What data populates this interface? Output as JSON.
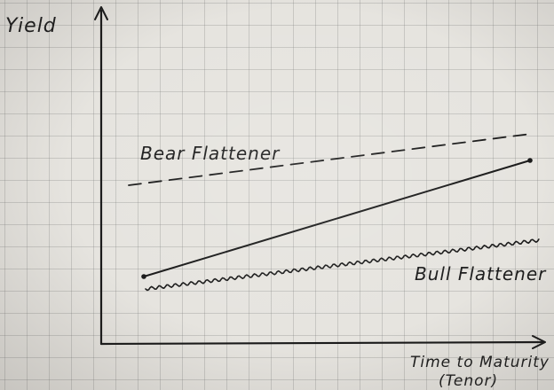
{
  "diagram": {
    "y_axis_label": "Yield",
    "x_axis_label_line1": "Time to Maturity",
    "x_axis_label_line2": "(Tenor)",
    "curves": [
      {
        "label": "Bear Flattener",
        "style": "dashed"
      },
      {
        "label": "",
        "style": "solid"
      },
      {
        "label": "Bull Flattener",
        "style": "wavy"
      }
    ],
    "ink_color": "#1a1a1a",
    "paper_color": "#e6e4df"
  }
}
